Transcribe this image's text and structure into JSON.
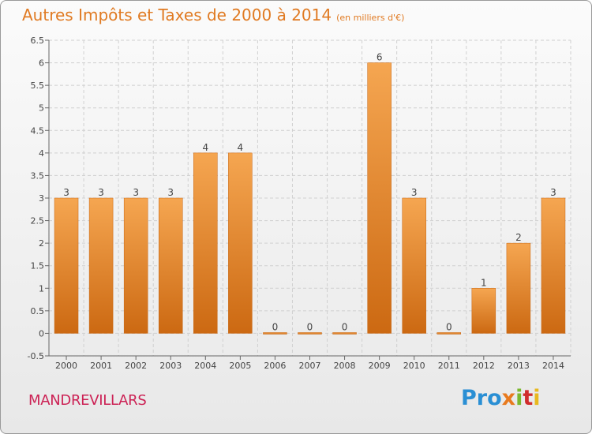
{
  "header": {
    "title": "Autres Impôts et Taxes de 2000 à 2014",
    "subtitle": "(en milliers d'€)"
  },
  "footer": {
    "commune": "MANDREVILLARS",
    "logo": "Proxiti"
  },
  "colors": {
    "bar_light": "#f5a34f",
    "bar_dark": "#cd6a12",
    "title": "#e07a22",
    "commune": "#cc2255"
  },
  "chart_data": {
    "type": "bar",
    "title": "Autres Impôts et Taxes de 2000 à 2014",
    "subtitle": "(en milliers d'€)",
    "categories": [
      "2000",
      "2001",
      "2002",
      "2003",
      "2004",
      "2005",
      "2006",
      "2007",
      "2008",
      "2009",
      "2010",
      "2011",
      "2012",
      "2013",
      "2014"
    ],
    "values": [
      3,
      3,
      3,
      3,
      4,
      4,
      0,
      0,
      0,
      6,
      3,
      0,
      1,
      2,
      3
    ],
    "data_labels": [
      "3",
      "3",
      "3",
      "3",
      "4",
      "4",
      "0",
      "0",
      "0",
      "6",
      "3",
      "0",
      "1",
      "2",
      "3"
    ],
    "yticks": [
      "-0.5",
      "0",
      "0.5",
      "1",
      "1.5",
      "2",
      "2.5",
      "3",
      "3.5",
      "4",
      "4.5",
      "5",
      "5.5",
      "6",
      "6.5"
    ],
    "ylim": [
      -0.5,
      6.5
    ],
    "grid": true,
    "legend": false
  }
}
